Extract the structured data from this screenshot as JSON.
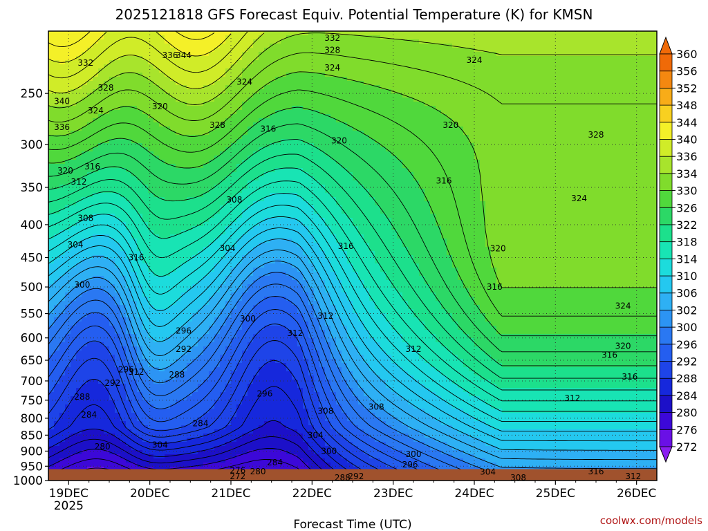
{
  "title": "2025121818 GFS Forecast Equiv. Potential Temperature (K) for KMSN",
  "credit": "coolwx.com/models",
  "chart_data": {
    "type": "heatmap",
    "title": "2025121818 GFS Forecast Equiv. Potential Temperature (K) for KMSN",
    "xlabel": "Forecast Time (UTC)",
    "ylabel": "",
    "x_ticks": [
      "19DEC",
      "20DEC",
      "21DEC",
      "22DEC",
      "23DEC",
      "24DEC",
      "25DEC",
      "26DEC"
    ],
    "x_year": "2025",
    "x_range_hours": [
      -6,
      174
    ],
    "y_ticks": [
      250,
      300,
      350,
      400,
      450,
      500,
      550,
      600,
      650,
      700,
      750,
      800,
      850,
      900,
      950,
      1000
    ],
    "y_scale": "log",
    "y_range": [
      200,
      1000
    ],
    "grid": true,
    "colorbar_unit": "K",
    "colorbar_levels": [
      272,
      276,
      280,
      284,
      288,
      292,
      296,
      300,
      302,
      306,
      310,
      314,
      318,
      322,
      326,
      330,
      334,
      336,
      340,
      344,
      348,
      352,
      356,
      360
    ],
    "colorbar_colors": [
      "#8a1ef0",
      "#6a10e6",
      "#3c08d8",
      "#1c10c8",
      "#1628dc",
      "#1e44e8",
      "#245ef0",
      "#2a78f2",
      "#2c94f4",
      "#2eb0f4",
      "#24c8f0",
      "#1cdcdc",
      "#18e4b4",
      "#1ce08c",
      "#2cd866",
      "#50d83c",
      "#80dc2c",
      "#a8e42c",
      "#d0ec28",
      "#f4f028",
      "#f8d020",
      "#f8ac18",
      "#f48810",
      "#f06a08"
    ],
    "ground": {
      "pressure_hpa": 960,
      "color": "#a0522d"
    },
    "contour_labels": [
      {
        "text": "332",
        "x_hours": 78,
        "p": 205
      },
      {
        "text": "328",
        "x_hours": 78,
        "p": 214
      },
      {
        "text": "324",
        "x_hours": 78,
        "p": 228
      },
      {
        "text": "324",
        "x_hours": 52,
        "p": 240
      },
      {
        "text": "332",
        "x_hours": 5,
        "p": 224
      },
      {
        "text": "336",
        "x_hours": 30,
        "p": 218
      },
      {
        "text": "344",
        "x_hours": 34,
        "p": 218
      },
      {
        "text": "324",
        "x_hours": 120,
        "p": 222
      },
      {
        "text": "328",
        "x_hours": 11,
        "p": 245
      },
      {
        "text": "320",
        "x_hours": 27,
        "p": 262
      },
      {
        "text": "328",
        "x_hours": 44,
        "p": 280
      },
      {
        "text": "324",
        "x_hours": 8,
        "p": 266
      },
      {
        "text": "316",
        "x_hours": 59,
        "p": 284
      },
      {
        "text": "320",
        "x_hours": 80,
        "p": 296
      },
      {
        "text": "320",
        "x_hours": 113,
        "p": 280
      },
      {
        "text": "328",
        "x_hours": 156,
        "p": 290
      },
      {
        "text": "340",
        "x_hours": -2,
        "p": 257
      },
      {
        "text": "336",
        "x_hours": -2,
        "p": 282
      },
      {
        "text": "320",
        "x_hours": -1,
        "p": 330
      },
      {
        "text": "312",
        "x_hours": 3,
        "p": 343
      },
      {
        "text": "316",
        "x_hours": 7,
        "p": 325
      },
      {
        "text": "316",
        "x_hours": 111,
        "p": 342
      },
      {
        "text": "324",
        "x_hours": 151,
        "p": 364
      },
      {
        "text": "308",
        "x_hours": 5,
        "p": 391
      },
      {
        "text": "308",
        "x_hours": 49,
        "p": 366
      },
      {
        "text": "304",
        "x_hours": 2,
        "p": 430
      },
      {
        "text": "316",
        "x_hours": 82,
        "p": 432
      },
      {
        "text": "316",
        "x_hours": 20,
        "p": 450
      },
      {
        "text": "304",
        "x_hours": 47,
        "p": 435
      },
      {
        "text": "320",
        "x_hours": 127,
        "p": 436
      },
      {
        "text": "300",
        "x_hours": 4,
        "p": 496
      },
      {
        "text": "316",
        "x_hours": 126,
        "p": 500
      },
      {
        "text": "324",
        "x_hours": 164,
        "p": 535
      },
      {
        "text": "300",
        "x_hours": 53,
        "p": 560
      },
      {
        "text": "312",
        "x_hours": 76,
        "p": 555
      },
      {
        "text": "296",
        "x_hours": 34,
        "p": 585
      },
      {
        "text": "312",
        "x_hours": 67,
        "p": 590
      },
      {
        "text": "292",
        "x_hours": 34,
        "p": 625
      },
      {
        "text": "312",
        "x_hours": 102,
        "p": 625
      },
      {
        "text": "320",
        "x_hours": 164,
        "p": 618
      },
      {
        "text": "316",
        "x_hours": 160,
        "p": 638
      },
      {
        "text": "296",
        "x_hours": 17,
        "p": 672
      },
      {
        "text": "312",
        "x_hours": 20,
        "p": 678
      },
      {
        "text": "288",
        "x_hours": 32,
        "p": 685
      },
      {
        "text": "292",
        "x_hours": 13,
        "p": 705
      },
      {
        "text": "316",
        "x_hours": 166,
        "p": 690
      },
      {
        "text": "296",
        "x_hours": 58,
        "p": 733
      },
      {
        "text": "312",
        "x_hours": 149,
        "p": 745
      },
      {
        "text": "288",
        "x_hours": 4,
        "p": 741
      },
      {
        "text": "308",
        "x_hours": 76,
        "p": 780
      },
      {
        "text": "308",
        "x_hours": 91,
        "p": 768
      },
      {
        "text": "284",
        "x_hours": 6,
        "p": 790
      },
      {
        "text": "284",
        "x_hours": 39,
        "p": 815
      },
      {
        "text": "304",
        "x_hours": 73,
        "p": 850
      },
      {
        "text": "304",
        "x_hours": 27,
        "p": 880
      },
      {
        "text": "280",
        "x_hours": 10,
        "p": 886
      },
      {
        "text": "300",
        "x_hours": 77,
        "p": 900
      },
      {
        "text": "300",
        "x_hours": 102,
        "p": 910
      },
      {
        "text": "296",
        "x_hours": 101,
        "p": 945
      },
      {
        "text": "284",
        "x_hours": 61,
        "p": 938
      },
      {
        "text": "280",
        "x_hours": 56,
        "p": 968
      },
      {
        "text": "276",
        "x_hours": 50,
        "p": 965
      },
      {
        "text": "272",
        "x_hours": 50,
        "p": 985
      },
      {
        "text": "292",
        "x_hours": 85,
        "p": 985
      },
      {
        "text": "288",
        "x_hours": 81,
        "p": 990
      },
      {
        "text": "304",
        "x_hours": 124,
        "p": 970
      },
      {
        "text": "308",
        "x_hours": 133,
        "p": 990
      },
      {
        "text": "316",
        "x_hours": 156,
        "p": 968
      },
      {
        "text": "312",
        "x_hours": 167,
        "p": 985
      }
    ]
  }
}
